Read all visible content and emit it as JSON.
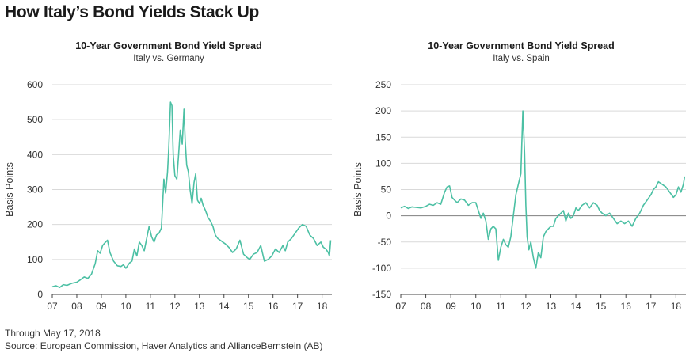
{
  "page": {
    "title": "How Italy’s Bond Yields Stack Up",
    "footnote_date": "Through May 17, 2018",
    "footnote_source": "Source: European Commission, Haver Analytics and AllianceBernstein (AB)"
  },
  "colors": {
    "series": "#4cc0a4",
    "grid": "#d9d9d9",
    "zero_line": "#7f7f7f"
  },
  "chart_data": [
    {
      "type": "line",
      "title": "10-Year Government Bond Yield Spread",
      "subtitle": "Italy vs. Germany",
      "ylabel": "Basis Points",
      "xlabel": "",
      "ylim": [
        0,
        600
      ],
      "yticks": [
        0,
        100,
        200,
        300,
        400,
        500,
        600
      ],
      "xlim": [
        2007.0,
        2018.4
      ],
      "xticks": [
        {
          "v": 2007,
          "label": "07"
        },
        {
          "v": 2008,
          "label": "08"
        },
        {
          "v": 2009,
          "label": "09"
        },
        {
          "v": 2010,
          "label": "10"
        },
        {
          "v": 2011,
          "label": "11"
        },
        {
          "v": 2012,
          "label": "12"
        },
        {
          "v": 2013,
          "label": "13"
        },
        {
          "v": 2014,
          "label": "14"
        },
        {
          "v": 2015,
          "label": "15"
        },
        {
          "v": 2016,
          "label": "16"
        },
        {
          "v": 2017,
          "label": "17"
        },
        {
          "v": 2018,
          "label": "18"
        }
      ],
      "grid": true,
      "series": [
        {
          "x": [
            2007.0,
            2007.15,
            2007.3,
            2007.45,
            2007.6,
            2007.8,
            2008.0,
            2008.15,
            2008.3,
            2008.45,
            2008.6,
            2008.75,
            2008.85,
            2008.95,
            2009.05,
            2009.15,
            2009.25,
            2009.35,
            2009.5,
            2009.65,
            2009.8,
            2009.9,
            2010.0,
            2010.15,
            2010.25,
            2010.35,
            2010.45,
            2010.55,
            2010.65,
            2010.75,
            2010.85,
            2010.95,
            2011.05,
            2011.15,
            2011.25,
            2011.35,
            2011.45,
            2011.55,
            2011.62,
            2011.7,
            2011.75,
            2011.82,
            2011.88,
            2011.93,
            2012.0,
            2012.08,
            2012.15,
            2012.22,
            2012.3,
            2012.37,
            2012.42,
            2012.48,
            2012.55,
            2012.62,
            2012.7,
            2012.78,
            2012.85,
            2012.92,
            2013.0,
            2013.07,
            2013.15,
            2013.25,
            2013.35,
            2013.45,
            2013.55,
            2013.65,
            2013.75,
            2013.85,
            2013.95,
            2014.05,
            2014.2,
            2014.35,
            2014.5,
            2014.65,
            2014.8,
            2014.95,
            2015.05,
            2015.2,
            2015.35,
            2015.5,
            2015.65,
            2015.8,
            2015.95,
            2016.1,
            2016.25,
            2016.4,
            2016.5,
            2016.6,
            2016.75,
            2016.9,
            2017.05,
            2017.2,
            2017.35,
            2017.5,
            2017.65,
            2017.8,
            2017.95,
            2018.05,
            2018.15,
            2018.25,
            2018.3,
            2018.35
          ],
          "y": [
            22,
            25,
            20,
            28,
            26,
            32,
            35,
            42,
            50,
            46,
            58,
            88,
            125,
            118,
            140,
            148,
            155,
            120,
            95,
            82,
            80,
            85,
            75,
            90,
            95,
            130,
            110,
            150,
            140,
            125,
            160,
            195,
            165,
            150,
            170,
            175,
            190,
            330,
            290,
            350,
            420,
            550,
            540,
            400,
            340,
            330,
            400,
            470,
            430,
            530,
            440,
            370,
            350,
            300,
            260,
            320,
            345,
            270,
            260,
            275,
            255,
            240,
            220,
            210,
            195,
            170,
            160,
            155,
            150,
            145,
            135,
            120,
            130,
            155,
            115,
            105,
            100,
            115,
            120,
            140,
            95,
            100,
            110,
            130,
            120,
            140,
            125,
            150,
            160,
            175,
            190,
            200,
            195,
            170,
            160,
            140,
            150,
            135,
            130,
            120,
            110,
            155
          ]
        }
      ]
    },
    {
      "type": "line",
      "title": "10-Year Government Bond Yield Spread",
      "subtitle": "Italy vs. Spain",
      "ylabel": "Basis Points",
      "xlabel": "",
      "ylim": [
        -150,
        250
      ],
      "yticks": [
        -150,
        -100,
        -50,
        0,
        50,
        100,
        150,
        200,
        250
      ],
      "xlim": [
        2007.0,
        2018.4
      ],
      "xticks": [
        {
          "v": 2007,
          "label": "07"
        },
        {
          "v": 2008,
          "label": "08"
        },
        {
          "v": 2009,
          "label": "09"
        },
        {
          "v": 2010,
          "label": "10"
        },
        {
          "v": 2011,
          "label": "11"
        },
        {
          "v": 2012,
          "label": "12"
        },
        {
          "v": 2013,
          "label": "13"
        },
        {
          "v": 2014,
          "label": "14"
        },
        {
          "v": 2015,
          "label": "15"
        },
        {
          "v": 2016,
          "label": "16"
        },
        {
          "v": 2017,
          "label": "17"
        },
        {
          "v": 2018,
          "label": "18"
        }
      ],
      "grid": true,
      "zero_line": true,
      "series": [
        {
          "x": [
            2007.0,
            2007.15,
            2007.3,
            2007.45,
            2007.6,
            2007.8,
            2008.0,
            2008.15,
            2008.3,
            2008.45,
            2008.6,
            2008.75,
            2008.85,
            2008.95,
            2009.05,
            2009.15,
            2009.25,
            2009.4,
            2009.55,
            2009.7,
            2009.85,
            2010.0,
            2010.1,
            2010.2,
            2010.3,
            2010.4,
            2010.5,
            2010.6,
            2010.7,
            2010.8,
            2010.9,
            2011.0,
            2011.1,
            2011.2,
            2011.3,
            2011.4,
            2011.5,
            2011.6,
            2011.7,
            2011.8,
            2011.88,
            2011.95,
            2012.0,
            2012.05,
            2012.12,
            2012.2,
            2012.3,
            2012.4,
            2012.5,
            2012.6,
            2012.7,
            2012.8,
            2012.9,
            2013.0,
            2013.1,
            2013.2,
            2013.3,
            2013.4,
            2013.5,
            2013.6,
            2013.7,
            2013.8,
            2013.9,
            2014.0,
            2014.1,
            2014.25,
            2014.4,
            2014.55,
            2014.7,
            2014.85,
            2014.95,
            2015.05,
            2015.2,
            2015.35,
            2015.5,
            2015.65,
            2015.8,
            2015.95,
            2016.1,
            2016.25,
            2016.4,
            2016.55,
            2016.7,
            2016.85,
            2017.0,
            2017.1,
            2017.2,
            2017.3,
            2017.45,
            2017.6,
            2017.75,
            2017.9,
            2018.0,
            2018.1,
            2018.2,
            2018.3,
            2018.35
          ],
          "y": [
            15,
            18,
            14,
            17,
            16,
            15,
            18,
            22,
            20,
            25,
            22,
            45,
            55,
            57,
            35,
            30,
            25,
            32,
            30,
            20,
            25,
            25,
            10,
            -5,
            5,
            -10,
            -45,
            -25,
            -20,
            -25,
            -85,
            -60,
            -45,
            -55,
            -60,
            -40,
            0,
            40,
            60,
            80,
            200,
            120,
            20,
            -40,
            -65,
            -50,
            -80,
            -100,
            -70,
            -80,
            -40,
            -30,
            -25,
            -20,
            -20,
            -5,
            0,
            5,
            10,
            -10,
            5,
            -5,
            0,
            15,
            10,
            20,
            25,
            15,
            25,
            20,
            10,
            5,
            0,
            5,
            -5,
            -15,
            -10,
            -15,
            -10,
            -20,
            -5,
            5,
            20,
            30,
            40,
            50,
            55,
            65,
            60,
            55,
            45,
            35,
            40,
            55,
            45,
            60,
            75
          ]
        }
      ]
    }
  ]
}
